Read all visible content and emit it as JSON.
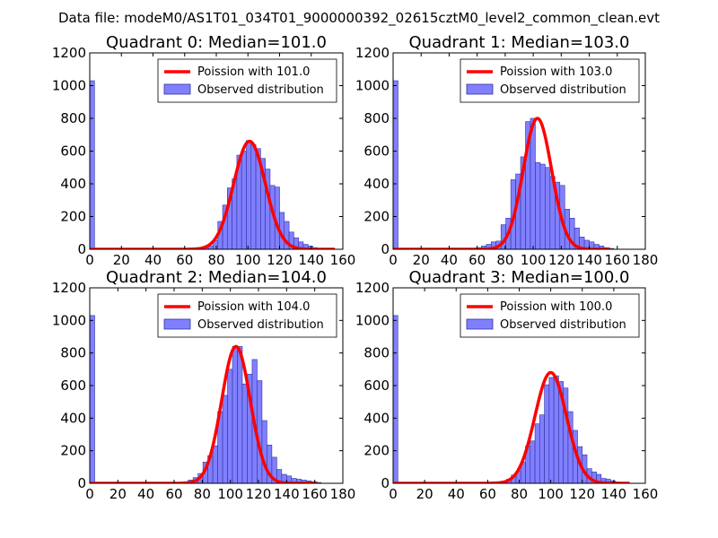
{
  "figure": {
    "suptitle": "Data file: modeM0/AS1T01_034T01_9000000392_02615cztM0_level2_common_clean.evt"
  },
  "colors": {
    "bar_fill": "#8080ff",
    "bar_edge": "#3030a0",
    "fit_line": "#ff0000",
    "axes": "#000000",
    "background": "#ffffff"
  },
  "chart_data": [
    {
      "type": "bar",
      "title": "Quadrant 0: Median=101.0",
      "xlim": [
        0,
        160
      ],
      "ylim": [
        0,
        1200
      ],
      "xticks": [
        "0",
        "20",
        "40",
        "60",
        "80",
        "100",
        "120",
        "140",
        "160"
      ],
      "yticks": [
        "0",
        "200",
        "400",
        "600",
        "800",
        "1000",
        "1200"
      ],
      "legend": [
        "Poission with 101.0",
        "Observed distribution"
      ],
      "legend_position": "top-right",
      "bin_width": 3,
      "bins": [
        [
          0,
          1030
        ],
        [
          3,
          5
        ],
        [
          6,
          3
        ],
        [
          9,
          3
        ],
        [
          12,
          3
        ],
        [
          15,
          3
        ],
        [
          18,
          3
        ],
        [
          21,
          3
        ],
        [
          24,
          3
        ],
        [
          27,
          3
        ],
        [
          30,
          3
        ],
        [
          33,
          3
        ],
        [
          36,
          3
        ],
        [
          39,
          3
        ],
        [
          42,
          3
        ],
        [
          45,
          3
        ],
        [
          48,
          3
        ],
        [
          51,
          3
        ],
        [
          54,
          3
        ],
        [
          57,
          3
        ],
        [
          60,
          3
        ],
        [
          63,
          3
        ],
        [
          66,
          3
        ],
        [
          69,
          5
        ],
        [
          72,
          10
        ],
        [
          75,
          20
        ],
        [
          78,
          55
        ],
        [
          81,
          170
        ],
        [
          84,
          270
        ],
        [
          87,
          375
        ],
        [
          90,
          430
        ],
        [
          93,
          575
        ],
        [
          96,
          600
        ],
        [
          99,
          665
        ],
        [
          102,
          640
        ],
        [
          105,
          615
        ],
        [
          108,
          555
        ],
        [
          111,
          490
        ],
        [
          114,
          390
        ],
        [
          117,
          380
        ],
        [
          120,
          225
        ],
        [
          123,
          170
        ],
        [
          126,
          105
        ],
        [
          129,
          70
        ],
        [
          132,
          45
        ],
        [
          135,
          30
        ],
        [
          138,
          20
        ],
        [
          141,
          10
        ],
        [
          144,
          5
        ],
        [
          147,
          3
        ],
        [
          150,
          1
        ]
      ],
      "fit": {
        "name": "Poission with 101.0",
        "mean": 101.0,
        "peak": 660,
        "x_range": [
          0,
          155
        ]
      }
    },
    {
      "type": "bar",
      "title": "Quadrant 1: Median=103.0",
      "xlim": [
        0,
        180
      ],
      "ylim": [
        0,
        1200
      ],
      "xticks": [
        "0",
        "20",
        "40",
        "60",
        "80",
        "100",
        "120",
        "140",
        "160",
        "180"
      ],
      "yticks": [
        "0",
        "200",
        "400",
        "600",
        "800",
        "1000",
        "1200"
      ],
      "legend": [
        "Poission with 103.0",
        "Observed distribution"
      ],
      "legend_position": "top-right",
      "bin_width": 3.5,
      "bins": [
        [
          0,
          1030
        ],
        [
          3.5,
          5
        ],
        [
          7,
          3
        ],
        [
          10.5,
          3
        ],
        [
          14,
          3
        ],
        [
          17.5,
          3
        ],
        [
          21,
          3
        ],
        [
          24.5,
          3
        ],
        [
          28,
          3
        ],
        [
          31.5,
          3
        ],
        [
          35,
          3
        ],
        [
          38.5,
          3
        ],
        [
          42,
          3
        ],
        [
          45.5,
          3
        ],
        [
          49,
          3
        ],
        [
          52.5,
          3
        ],
        [
          56,
          3
        ],
        [
          59.5,
          10
        ],
        [
          63,
          20
        ],
        [
          66.5,
          30
        ],
        [
          70,
          45
        ],
        [
          73.5,
          50
        ],
        [
          77,
          150
        ],
        [
          80.5,
          190
        ],
        [
          84,
          425
        ],
        [
          87.5,
          460
        ],
        [
          91,
          565
        ],
        [
          94.5,
          780
        ],
        [
          98,
          800
        ],
        [
          101.5,
          530
        ],
        [
          105,
          520
        ],
        [
          108.5,
          500
        ],
        [
          112,
          445
        ],
        [
          115.5,
          410
        ],
        [
          119,
          390
        ],
        [
          122.5,
          245
        ],
        [
          126,
          190
        ],
        [
          129.5,
          130
        ],
        [
          133,
          75
        ],
        [
          136.5,
          55
        ],
        [
          140,
          45
        ],
        [
          143.5,
          30
        ],
        [
          147,
          20
        ],
        [
          150.5,
          10
        ],
        [
          154,
          5
        ]
      ],
      "fit": {
        "name": "Poission with 103.0",
        "mean": 103.0,
        "peak": 800,
        "x_range": [
          0,
          155
        ]
      }
    },
    {
      "type": "bar",
      "title": "Quadrant 2: Median=104.0",
      "xlim": [
        0,
        180
      ],
      "ylim": [
        0,
        1200
      ],
      "xticks": [
        "0",
        "20",
        "40",
        "60",
        "80",
        "100",
        "120",
        "140",
        "160",
        "180"
      ],
      "yticks": [
        "0",
        "200",
        "400",
        "600",
        "800",
        "1000",
        "1200"
      ],
      "legend": [
        "Poission with 104.0",
        "Observed distribution"
      ],
      "legend_position": "top-right",
      "bin_width": 3.5,
      "bins": [
        [
          0,
          1030
        ],
        [
          3.5,
          5
        ],
        [
          7,
          3
        ],
        [
          10.5,
          3
        ],
        [
          14,
          3
        ],
        [
          17.5,
          3
        ],
        [
          21,
          3
        ],
        [
          24.5,
          3
        ],
        [
          28,
          3
        ],
        [
          31.5,
          3
        ],
        [
          35,
          3
        ],
        [
          38.5,
          3
        ],
        [
          42,
          3
        ],
        [
          45.5,
          3
        ],
        [
          49,
          3
        ],
        [
          52.5,
          3
        ],
        [
          56,
          3
        ],
        [
          59.5,
          3
        ],
        [
          63,
          5
        ],
        [
          66.5,
          10
        ],
        [
          70,
          20
        ],
        [
          73.5,
          35
        ],
        [
          77,
          60
        ],
        [
          80.5,
          130
        ],
        [
          84,
          170
        ],
        [
          87.5,
          230
        ],
        [
          91,
          440
        ],
        [
          94.5,
          540
        ],
        [
          98,
          700
        ],
        [
          101.5,
          840
        ],
        [
          105,
          840
        ],
        [
          108.5,
          610
        ],
        [
          112,
          670
        ],
        [
          115.5,
          760
        ],
        [
          119,
          630
        ],
        [
          122.5,
          385
        ],
        [
          126,
          235
        ],
        [
          129.5,
          160
        ],
        [
          133,
          85
        ],
        [
          136.5,
          55
        ],
        [
          140,
          45
        ],
        [
          143.5,
          30
        ],
        [
          147,
          25
        ],
        [
          150.5,
          20
        ],
        [
          154,
          15
        ],
        [
          157.5,
          10
        ],
        [
          161,
          5
        ]
      ],
      "fit": {
        "name": "Poission with 104.0",
        "mean": 104.0,
        "peak": 840,
        "x_range": [
          0,
          162
        ]
      }
    },
    {
      "type": "bar",
      "title": "Quadrant 3: Median=100.0",
      "xlim": [
        0,
        160
      ],
      "ylim": [
        0,
        1200
      ],
      "xticks": [
        "0",
        "20",
        "40",
        "60",
        "80",
        "100",
        "120",
        "140",
        "160"
      ],
      "yticks": [
        "0",
        "200",
        "400",
        "600",
        "800",
        "1000",
        "1200"
      ],
      "legend": [
        "Poission with 100.0",
        "Observed distribution"
      ],
      "legend_position": "top-right",
      "bin_width": 3,
      "bins": [
        [
          0,
          1030
        ],
        [
          3,
          5
        ],
        [
          6,
          3
        ],
        [
          9,
          3
        ],
        [
          12,
          3
        ],
        [
          15,
          3
        ],
        [
          18,
          3
        ],
        [
          21,
          3
        ],
        [
          24,
          3
        ],
        [
          27,
          3
        ],
        [
          30,
          3
        ],
        [
          33,
          3
        ],
        [
          36,
          3
        ],
        [
          39,
          3
        ],
        [
          42,
          3
        ],
        [
          45,
          3
        ],
        [
          48,
          3
        ],
        [
          51,
          3
        ],
        [
          54,
          3
        ],
        [
          57,
          3
        ],
        [
          60,
          3
        ],
        [
          63,
          3
        ],
        [
          66,
          5
        ],
        [
          69,
          10
        ],
        [
          72,
          25
        ],
        [
          75,
          50
        ],
        [
          78,
          75
        ],
        [
          81,
          130
        ],
        [
          84,
          230
        ],
        [
          87,
          260
        ],
        [
          90,
          365
        ],
        [
          93,
          420
        ],
        [
          96,
          605
        ],
        [
          99,
          650
        ],
        [
          102,
          660
        ],
        [
          105,
          625
        ],
        [
          108,
          585
        ],
        [
          111,
          440
        ],
        [
          114,
          325
        ],
        [
          117,
          225
        ],
        [
          120,
          175
        ],
        [
          123,
          90
        ],
        [
          126,
          70
        ],
        [
          129,
          55
        ],
        [
          132,
          30
        ],
        [
          135,
          25
        ],
        [
          138,
          15
        ],
        [
          141,
          8
        ],
        [
          144,
          5
        ],
        [
          147,
          3
        ]
      ],
      "fit": {
        "name": "Poission with 100.0",
        "mean": 100.0,
        "peak": 680,
        "x_range": [
          0,
          150
        ]
      }
    }
  ]
}
